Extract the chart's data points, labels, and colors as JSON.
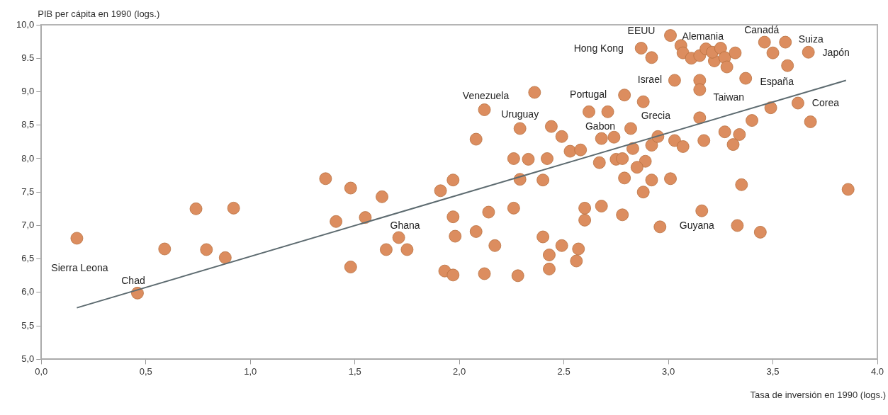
{
  "chart_data": {
    "type": "scatter",
    "xlabel": "Tasa de inversión en 1990 (logs.)",
    "ylabel": "PIB per cápita en 1990 (logs.)",
    "marker": "circle",
    "legend": false,
    "grid": false,
    "xlim": [
      0,
      4
    ],
    "xticks": [
      {
        "value": 0,
        "label": "0,0"
      },
      {
        "value": 0.5,
        "label": "0,5"
      },
      {
        "value": 1,
        "label": "1,0"
      },
      {
        "value": 1.5,
        "label": "1,5"
      },
      {
        "value": 2,
        "label": "2,0"
      },
      {
        "value": 2.5,
        "label": "2.5"
      },
      {
        "value": 3,
        "label": "3,0"
      },
      {
        "value": 3.5,
        "label": "3,5"
      },
      {
        "value": 4,
        "label": "4.0"
      }
    ],
    "ylim": [
      5,
      10
    ],
    "yticks": [
      {
        "value": 5,
        "label": "5,0"
      },
      {
        "value": 5.5,
        "label": "5,5"
      },
      {
        "value": 6,
        "label": "6,0"
      },
      {
        "value": 6.5,
        "label": "6,5"
      },
      {
        "value": 7,
        "label": "7,0"
      },
      {
        "value": 7.5,
        "label": "7,5"
      },
      {
        "value": 8,
        "label": "8,0"
      },
      {
        "value": 8.5,
        "label": "8,5"
      },
      {
        "value": 9,
        "label": "9,0"
      },
      {
        "value": 9.5,
        "label": "9.5"
      },
      {
        "value": 10,
        "label": "10,0"
      }
    ],
    "series": [
      {
        "type": "scatter",
        "color": "#dc8d5f",
        "x": [
          0.17,
          0.46,
          0.59,
          0.74,
          0.92,
          0.79,
          0.88,
          1.36,
          1.48,
          1.63,
          1.41,
          1.55,
          1.71,
          1.65,
          1.75,
          1.48,
          1.91,
          1.97,
          1.97,
          1.98,
          1.93,
          1.97,
          2.08,
          2.14,
          2.17,
          2.12,
          2.28,
          2.26,
          2.08,
          2.12,
          2.36,
          2.29,
          2.44,
          2.49,
          2.26,
          2.33,
          2.42,
          2.53,
          2.58,
          2.29,
          2.4,
          2.62,
          2.71,
          2.79,
          2.88,
          2.82,
          2.68,
          2.74,
          2.83,
          2.92,
          2.95,
          3.03,
          3.07,
          3.17,
          3.15,
          3.27,
          3.34,
          3.31,
          3.4,
          3.49,
          3.62,
          3.68,
          3.86,
          3.35,
          2.67,
          2.75,
          2.78,
          2.89,
          2.85,
          2.79,
          2.92,
          3.01,
          2.88,
          3.03,
          3.15,
          3.15,
          3.37,
          3.57,
          3.67,
          3.56,
          3.46,
          3.5,
          3.01,
          2.87,
          2.92,
          3.06,
          3.07,
          3.11,
          3.15,
          3.18,
          3.22,
          3.21,
          3.25,
          3.27,
          3.28,
          3.32,
          2.6,
          2.68,
          2.6,
          2.78,
          3.16,
          2.96,
          3.33,
          3.44,
          2.4,
          2.49,
          2.57,
          2.43,
          2.56,
          2.43
        ],
        "values": [
          6.81,
          5.99,
          6.65,
          7.25,
          7.26,
          6.64,
          6.52,
          7.7,
          7.56,
          7.43,
          7.06,
          7.12,
          6.82,
          6.64,
          6.64,
          6.38,
          7.52,
          7.68,
          7.13,
          6.84,
          6.32,
          6.26,
          6.91,
          7.2,
          6.7,
          6.28,
          6.25,
          7.26,
          8.29,
          8.73,
          8.99,
          8.45,
          8.48,
          8.33,
          8.0,
          7.99,
          8.0,
          8.11,
          8.13,
          7.69,
          7.68,
          8.7,
          8.7,
          8.95,
          8.85,
          8.45,
          8.3,
          8.32,
          8.15,
          8.2,
          8.33,
          8.27,
          8.18,
          8.27,
          8.61,
          8.4,
          8.36,
          8.21,
          8.57,
          8.76,
          8.83,
          8.55,
          7.54,
          7.61,
          7.94,
          7.99,
          8.0,
          7.96,
          7.87,
          7.71,
          7.68,
          7.7,
          7.5,
          9.17,
          9.17,
          9.03,
          9.2,
          9.39,
          9.59,
          9.74,
          9.74,
          9.58,
          9.84,
          9.65,
          9.51,
          9.69,
          9.58,
          9.5,
          9.54,
          9.64,
          9.46,
          9.59,
          9.65,
          9.51,
          9.37,
          9.58,
          7.26,
          7.29,
          7.08,
          7.16,
          7.22,
          6.98,
          7.0,
          6.9,
          6.83,
          6.7,
          6.65,
          6.56,
          6.47,
          6.35
        ]
      },
      {
        "type": "line",
        "color": "#5d6b70",
        "marker": "none",
        "x": [
          0.17,
          3.85
        ],
        "values": [
          5.77,
          9.17
        ]
      }
    ],
    "annotations": [
      {
        "text": "Sierra Leona",
        "x": 0.17,
        "y": 6.81
      },
      {
        "text": "Chad",
        "x": 0.46,
        "y": 5.99
      },
      {
        "text": "Ghana",
        "x": 1.71,
        "y": 6.82
      },
      {
        "text": "Venezuela",
        "x": 2.12,
        "y": 8.73
      },
      {
        "text": "Uruguay",
        "x": 2.29,
        "y": 8.45
      },
      {
        "text": "Portugal",
        "x": 2.79,
        "y": 8.95
      },
      {
        "text": "Gabon",
        "x": 2.82,
        "y": 8.45
      },
      {
        "text": "Grecia",
        "x": 2.95,
        "y": 8.33
      },
      {
        "text": "Israel",
        "x": 3.03,
        "y": 9.17
      },
      {
        "text": "Taiwan",
        "x": 3.15,
        "y": 9.03
      },
      {
        "text": "España",
        "x": 3.37,
        "y": 9.2
      },
      {
        "text": "Corea",
        "x": 3.62,
        "y": 8.83
      },
      {
        "text": "Japón",
        "x": 3.67,
        "y": 9.59
      },
      {
        "text": "Suiza",
        "x": 3.56,
        "y": 9.74
      },
      {
        "text": "Canadá",
        "x": 3.46,
        "y": 9.74
      },
      {
        "text": "Alemania",
        "x": 3.06,
        "y": 9.69
      },
      {
        "text": "EEUU",
        "x": 3.01,
        "y": 9.84
      },
      {
        "text": "Hong Kong",
        "x": 2.87,
        "y": 9.65
      },
      {
        "text": "Guyana",
        "x": 2.96,
        "y": 6.98
      }
    ]
  }
}
